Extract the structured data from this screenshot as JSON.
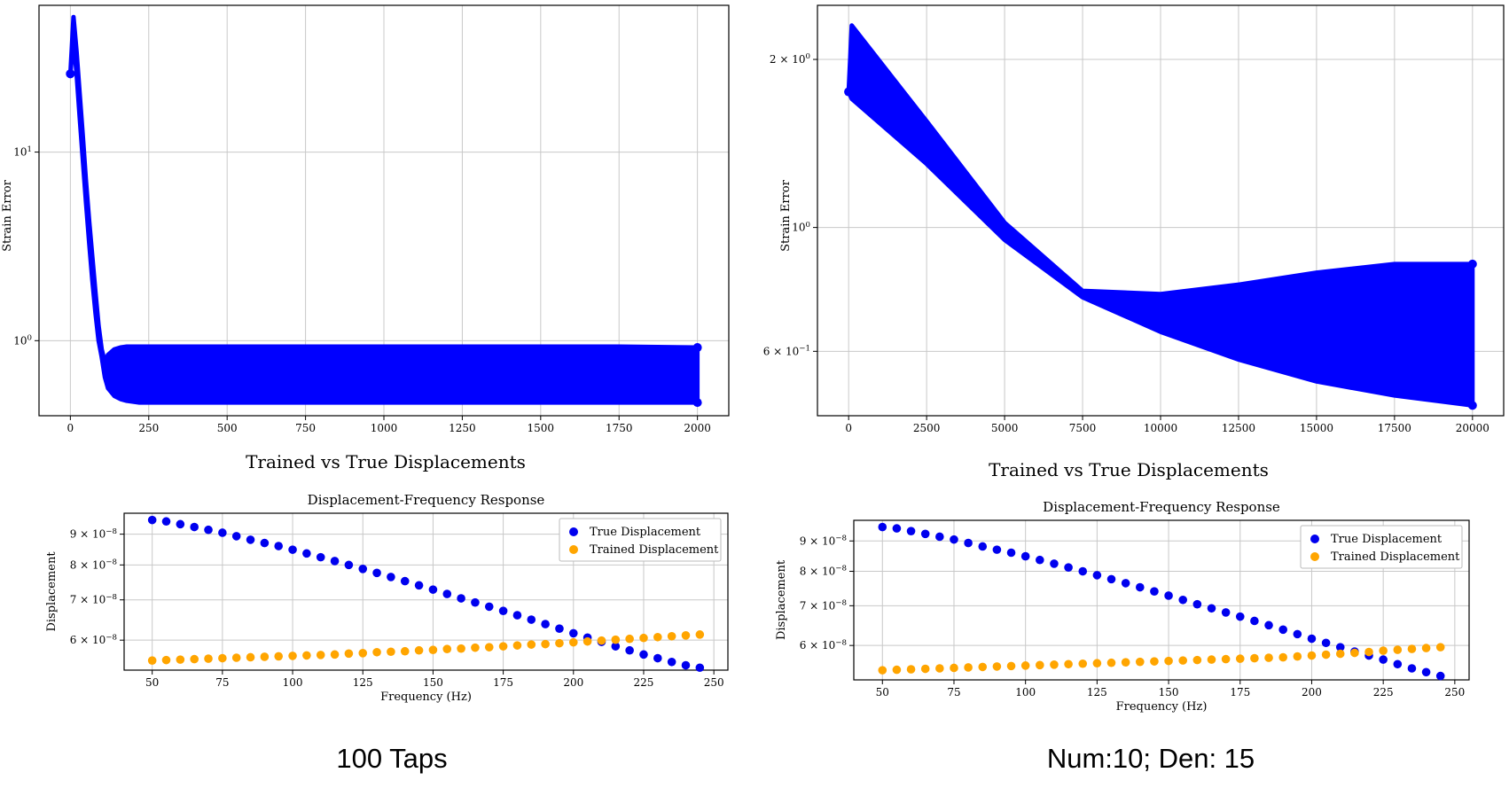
{
  "panels": [
    {
      "caption": "100 Taps",
      "strain_chart": {
        "type": "line",
        "title": "",
        "xlabel": "",
        "ylabel": "Strain Error",
        "yscale": "log",
        "xlim": [
          -100,
          2100
        ],
        "ylim": [
          0.4,
          60
        ],
        "xticks": [
          0,
          250,
          500,
          750,
          1000,
          1250,
          1500,
          1750,
          2000
        ],
        "xtick_labels": [
          "0",
          "250",
          "500",
          "750",
          "1000",
          "1250",
          "1500",
          "1750",
          "2000"
        ],
        "yticks": [
          1,
          10
        ],
        "ytick_labels": [
          "10^0",
          "10^1"
        ],
        "grid": true,
        "color": "#0000ff",
        "series": [
          {
            "x": [
              0,
              10,
              20,
              30,
              40,
              50,
              60,
              70,
              80,
              90,
              100,
              110,
              120,
              140,
              160,
              180,
              200,
              220,
              250,
              500,
              750,
              1000,
              1250,
              1500,
              1750,
              2000
            ],
            "upper": [
              26,
              52,
              34,
              20,
              12,
              7.0,
              4.3,
              2.8,
              1.8,
              1.2,
              0.9,
              0.77,
              0.84,
              0.9,
              0.92,
              0.93,
              0.93,
              0.93,
              0.93,
              0.93,
              0.93,
              0.93,
              0.93,
              0.93,
              0.93,
              0.92
            ],
            "lower": [
              26,
              40,
              26,
              15,
              9,
              5.4,
              3.3,
              2.1,
              1.4,
              1.0,
              0.82,
              0.64,
              0.56,
              0.51,
              0.49,
              0.48,
              0.475,
              0.47,
              0.47,
              0.47,
              0.47,
              0.47,
              0.47,
              0.47,
              0.47,
              0.47
            ]
          }
        ]
      },
      "section_title": "Trained vs True Displacements",
      "disp_chart": {
        "type": "scatter",
        "title": "Displacement-Frequency Response",
        "xlabel": "Frequency (Hz)",
        "ylabel": "Displacement",
        "yscale": "log",
        "xlim": [
          40,
          255
        ],
        "ylim": [
          5.35e-08,
          9.75e-08
        ],
        "xticks": [
          50,
          75,
          100,
          125,
          150,
          175,
          200,
          225,
          250
        ],
        "xtick_labels": [
          "50",
          "75",
          "100",
          "125",
          "150",
          "175",
          "200",
          "225",
          "250"
        ],
        "yticks": [
          6e-08,
          7e-08,
          8e-08,
          9e-08
        ],
        "ytick_labels": [
          "6 × 10^−8",
          "7 × 10^−8",
          "8 × 10^−8",
          "9 × 10^−8"
        ],
        "grid": true,
        "legend_position": "top-right",
        "series": [
          {
            "name": "True Displacement",
            "color": "#0000ee",
            "x": [
              50,
              55,
              60,
              65,
              70,
              75,
              80,
              85,
              90,
              95,
              100,
              105,
              110,
              115,
              120,
              125,
              130,
              135,
              140,
              145,
              150,
              155,
              160,
              165,
              170,
              175,
              180,
              185,
              190,
              195,
              200,
              205,
              210,
              215,
              220,
              225,
              230,
              235,
              240,
              245
            ],
            "y": [
              9.5e-08,
              9.45e-08,
              9.35e-08,
              9.25e-08,
              9.15e-08,
              9.05e-08,
              8.93e-08,
              8.81e-08,
              8.7e-08,
              8.6e-08,
              8.48e-08,
              8.36e-08,
              8.24e-08,
              8.12e-08,
              8e-08,
              7.88e-08,
              7.76e-08,
              7.64e-08,
              7.52e-08,
              7.4e-08,
              7.28e-08,
              7.16e-08,
              7.04e-08,
              6.93e-08,
              6.82e-08,
              6.71e-08,
              6.6e-08,
              6.49e-08,
              6.38e-08,
              6.27e-08,
              6.16e-08,
              6.06e-08,
              5.96e-08,
              5.86e-08,
              5.77e-08,
              5.68e-08,
              5.6e-08,
              5.52e-08,
              5.45e-08,
              5.4e-08
            ]
          },
          {
            "name": "Trained Displacement",
            "color": "#ffa500",
            "x": [
              50,
              55,
              60,
              65,
              70,
              75,
              80,
              85,
              90,
              95,
              100,
              105,
              110,
              115,
              120,
              125,
              130,
              135,
              140,
              145,
              150,
              155,
              160,
              165,
              170,
              175,
              180,
              185,
              190,
              195,
              200,
              205,
              210,
              215,
              220,
              225,
              230,
              235,
              240,
              245
            ],
            "y": [
              5.55e-08,
              5.56e-08,
              5.57e-08,
              5.58e-08,
              5.59e-08,
              5.6e-08,
              5.61e-08,
              5.62e-08,
              5.63e-08,
              5.64e-08,
              5.65e-08,
              5.66e-08,
              5.67e-08,
              5.68e-08,
              5.7e-08,
              5.71e-08,
              5.73e-08,
              5.74e-08,
              5.75e-08,
              5.77e-08,
              5.78e-08,
              5.8e-08,
              5.81e-08,
              5.83e-08,
              5.84e-08,
              5.86e-08,
              5.88e-08,
              5.9e-08,
              5.91e-08,
              5.93e-08,
              5.95e-08,
              5.97e-08,
              5.99e-08,
              6.01e-08,
              6.03e-08,
              6.05e-08,
              6.07e-08,
              6.09e-08,
              6.11e-08,
              6.13e-08
            ]
          }
        ]
      }
    },
    {
      "caption": "Num:10; Den: 15",
      "strain_chart": {
        "type": "line",
        "title": "",
        "xlabel": "",
        "ylabel": "Strain Error",
        "yscale": "log",
        "xlim": [
          -1000,
          21000
        ],
        "ylim": [
          0.46,
          2.5
        ],
        "xticks": [
          0,
          2500,
          5000,
          7500,
          10000,
          12500,
          15000,
          17500,
          20000
        ],
        "xtick_labels": [
          "0",
          "2500",
          "5000",
          "7500",
          "10000",
          "12500",
          "15000",
          "17500",
          "20000"
        ],
        "yticks": [
          0.6,
          1,
          2
        ],
        "ytick_labels": [
          "6 × 10^−1",
          "10^0",
          "2 × 10^0"
        ],
        "grid": true,
        "color": "#0000ff",
        "series": [
          {
            "x": [
              0,
              100,
              2500,
              5000,
              7500,
              10000,
              12500,
              15000,
              17500,
              20000
            ],
            "upper": [
              1.75,
              2.3,
              1.55,
              1.02,
              0.77,
              0.76,
              0.79,
              0.83,
              0.86,
              0.86
            ],
            "lower": [
              1.75,
              1.7,
              1.3,
              0.95,
              0.75,
              0.65,
              0.58,
              0.53,
              0.5,
              0.48
            ]
          }
        ]
      },
      "section_title": "Trained vs True Displacements",
      "disp_chart": {
        "type": "scatter",
        "title": "Displacement-Frequency Response",
        "xlabel": "Frequency (Hz)",
        "ylabel": "Displacement",
        "yscale": "log",
        "xlim": [
          40,
          255
        ],
        "ylim": [
          5.25e-08,
          9.75e-08
        ],
        "xticks": [
          50,
          75,
          100,
          125,
          150,
          175,
          200,
          225,
          250
        ],
        "xtick_labels": [
          "50",
          "75",
          "100",
          "125",
          "150",
          "175",
          "200",
          "225",
          "250"
        ],
        "yticks": [
          6e-08,
          7e-08,
          8e-08,
          9e-08
        ],
        "ytick_labels": [
          "6 × 10^−8",
          "7 × 10^−8",
          "8 × 10^−8",
          "9 × 10^−8"
        ],
        "grid": true,
        "legend_position": "top-right",
        "series": [
          {
            "name": "True Displacement",
            "color": "#0000ee",
            "x": [
              50,
              55,
              60,
              65,
              70,
              75,
              80,
              85,
              90,
              95,
              100,
              105,
              110,
              115,
              120,
              125,
              130,
              135,
              140,
              145,
              150,
              155,
              160,
              165,
              170,
              175,
              180,
              185,
              190,
              195,
              200,
              205,
              210,
              215,
              220,
              225,
              230,
              235,
              240,
              245
            ],
            "y": [
              9.5e-08,
              9.45e-08,
              9.35e-08,
              9.25e-08,
              9.15e-08,
              9.05e-08,
              8.93e-08,
              8.81e-08,
              8.7e-08,
              8.6e-08,
              8.48e-08,
              8.36e-08,
              8.24e-08,
              8.12e-08,
              8e-08,
              7.88e-08,
              7.76e-08,
              7.64e-08,
              7.52e-08,
              7.4e-08,
              7.28e-08,
              7.16e-08,
              7.04e-08,
              6.93e-08,
              6.82e-08,
              6.71e-08,
              6.6e-08,
              6.49e-08,
              6.38e-08,
              6.27e-08,
              6.16e-08,
              6.06e-08,
              5.96e-08,
              5.86e-08,
              5.77e-08,
              5.68e-08,
              5.58e-08,
              5.49e-08,
              5.41e-08,
              5.33e-08
            ]
          },
          {
            "name": "Trained Displacement",
            "color": "#ffa500",
            "x": [
              50,
              55,
              60,
              65,
              70,
              75,
              80,
              85,
              90,
              95,
              100,
              105,
              110,
              115,
              120,
              125,
              130,
              135,
              140,
              145,
              150,
              155,
              160,
              165,
              170,
              175,
              180,
              185,
              190,
              195,
              200,
              205,
              210,
              215,
              220,
              225,
              230,
              235,
              240,
              245
            ],
            "y": [
              5.45e-08,
              5.46e-08,
              5.47e-08,
              5.48e-08,
              5.49e-08,
              5.5e-08,
              5.51e-08,
              5.52e-08,
              5.53e-08,
              5.54e-08,
              5.55e-08,
              5.56e-08,
              5.57e-08,
              5.58e-08,
              5.59e-08,
              5.6e-08,
              5.61e-08,
              5.62e-08,
              5.63e-08,
              5.64e-08,
              5.65e-08,
              5.66e-08,
              5.67e-08,
              5.68e-08,
              5.69e-08,
              5.7e-08,
              5.71e-08,
              5.72e-08,
              5.73e-08,
              5.75e-08,
              5.77e-08,
              5.79e-08,
              5.81e-08,
              5.83e-08,
              5.85e-08,
              5.88e-08,
              5.9e-08,
              5.92e-08,
              5.94e-08,
              5.96e-08
            ]
          }
        ]
      }
    }
  ]
}
